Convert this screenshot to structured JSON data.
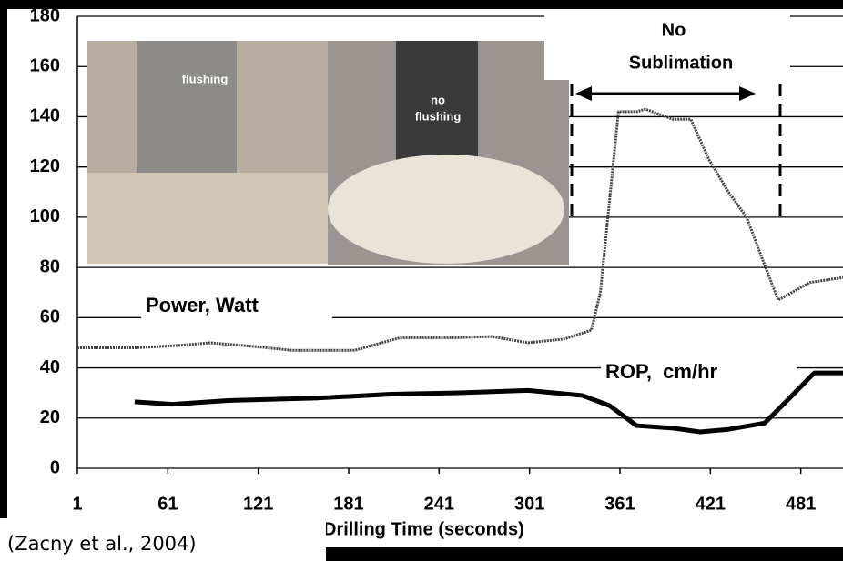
{
  "chart_data": {
    "type": "line",
    "xlabel": "Drilling Time (seconds)",
    "xlim": [
      1,
      509
    ],
    "ylim": [
      0,
      180
    ],
    "xticks": [
      1,
      61,
      121,
      181,
      241,
      301,
      361,
      421,
      481
    ],
    "yticks": [
      0,
      20,
      40,
      60,
      80,
      100,
      120,
      140,
      160,
      180
    ],
    "grid": true,
    "series": [
      {
        "name": "Power, Watt",
        "color": "#444444",
        "x": [
          1,
          40,
          70,
          89,
          119,
          143,
          185,
          203,
          215,
          251,
          276,
          300,
          324,
          342,
          348,
          360,
          372,
          378,
          396,
          408,
          420,
          433,
          445,
          457,
          466,
          475,
          487,
          509
        ],
        "values": [
          48,
          48,
          49,
          50,
          48.5,
          47,
          47,
          50,
          52,
          52,
          52.5,
          50,
          51.5,
          55,
          70,
          142,
          142,
          143,
          139,
          139,
          123,
          110,
          100,
          81,
          67,
          70,
          74,
          76
        ]
      },
      {
        "name": "ROP,  cm/hr",
        "color": "#000000",
        "x": [
          39,
          64,
          101,
          161,
          209,
          251,
          300,
          336,
          354,
          372,
          396,
          414,
          433,
          457,
          472,
          490,
          509
        ],
        "values": [
          26.5,
          25.5,
          27,
          28,
          29.5,
          30,
          31,
          29,
          25,
          17,
          16,
          14.5,
          15.5,
          18,
          27,
          38,
          38
        ]
      }
    ],
    "annotations": {
      "region": [
        "No",
        "Sublimation"
      ],
      "photo_left": "flushing",
      "photo_right": [
        "no",
        "flushing"
      ],
      "citation": "(Zacny et al., 2004)"
    }
  }
}
